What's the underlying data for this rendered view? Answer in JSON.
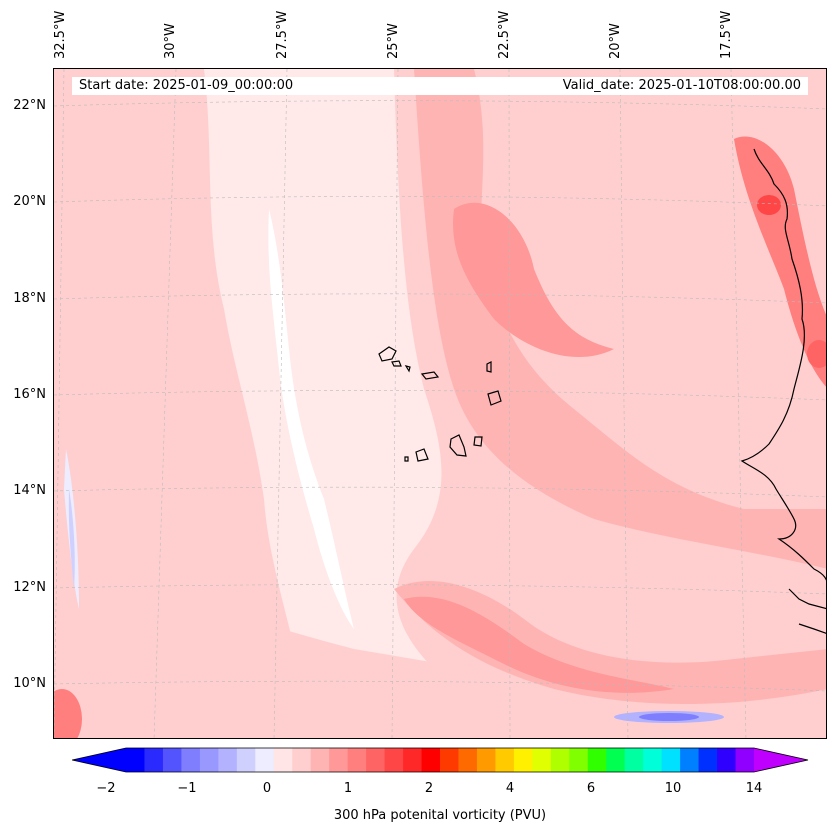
{
  "map": {
    "start_label": "Start date: 2025-01-09_00:00:00",
    "valid_label": "Valid_date: 2025-01-10T08:00:00.00",
    "lon_labels": [
      "32.5°W",
      "30°W",
      "27.5°W",
      "25°W",
      "22.5°W",
      "20°W",
      "17.5°W"
    ],
    "lat_labels": [
      "22°N",
      "20°N",
      "18°N",
      "16°N",
      "14°N",
      "12°N",
      "10°N"
    ],
    "coast_color": "#000000",
    "gridline_color": "#bbbbbb"
  },
  "colorbar": {
    "title": "300 hPa potenital vorticity (PVU)",
    "tick_labels": [
      "−2",
      "−1",
      "0",
      "1",
      "2",
      "4",
      "6",
      "10",
      "14"
    ],
    "colors": [
      "#0000ff",
      "#2a2aff",
      "#5454ff",
      "#7e7eff",
      "#9898ff",
      "#b2b2ff",
      "#d0d0ff",
      "#ededff",
      "#ffe5e5",
      "#ffcfcf",
      "#ffb4b4",
      "#ff9898",
      "#ff7e7e",
      "#ff6464",
      "#ff4646",
      "#ff2828",
      "#ff0000",
      "#ff3a00",
      "#ff6a00",
      "#ff9a00",
      "#ffca00",
      "#fff000",
      "#e0ff00",
      "#b0ff00",
      "#80ff00",
      "#30ff00",
      "#00ff50",
      "#00ffa0",
      "#00ffd8",
      "#00e0ff",
      "#0080ff",
      "#0030ff",
      "#3000ff",
      "#9000ff"
    ],
    "extend_low": "#0000ff",
    "extend_high": "#c000ff"
  }
}
